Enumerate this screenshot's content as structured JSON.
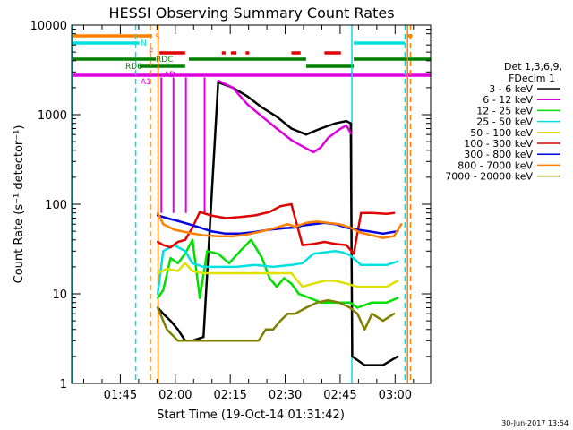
{
  "chart_data": {
    "type": "line",
    "title": "HESSI Observing Summary Count Rates",
    "xlabel": "Start Time (19-Oct-14 01:31:42)",
    "ylabel": "Count Rate (s⁻¹ detector⁻¹)",
    "yscale": "log",
    "ylim": [
      1,
      10000
    ],
    "xlim_minutes": [
      0,
      98
    ],
    "x_ticks": [
      {
        "m": 13.3,
        "label": "01:45"
      },
      {
        "m": 28.3,
        "label": "02:00"
      },
      {
        "m": 43.3,
        "label": "02:15"
      },
      {
        "m": 58.3,
        "label": "02:30"
      },
      {
        "m": 73.3,
        "label": "02:45"
      },
      {
        "m": 88.3,
        "label": "03:00"
      }
    ],
    "y_ticks": [
      {
        "v": 1,
        "label": "1"
      },
      {
        "v": 10,
        "label": "10"
      },
      {
        "v": 100,
        "label": "100"
      },
      {
        "v": 1000,
        "label": "1000"
      },
      {
        "v": 10000,
        "label": "10000"
      }
    ],
    "legend_header": [
      "Det 1,3,6,9,",
      "FDecim 1"
    ],
    "legend_placement": "right",
    "series": [
      {
        "name": "3 - 6 keV",
        "color": "#000000",
        "points": [
          [
            23.5,
            7
          ],
          [
            25,
            6
          ],
          [
            27,
            5
          ],
          [
            29,
            4
          ],
          [
            31,
            3
          ],
          [
            33,
            3
          ],
          [
            36,
            3.3
          ],
          [
            40,
            2300
          ],
          [
            44,
            2000
          ],
          [
            48,
            1600
          ],
          [
            52,
            1200
          ],
          [
            56,
            950
          ],
          [
            60,
            700
          ],
          [
            64,
            600
          ],
          [
            68,
            700
          ],
          [
            72,
            800
          ],
          [
            75,
            850
          ],
          [
            76.2,
            800
          ],
          [
            76.6,
            2
          ],
          [
            80,
            1.6
          ],
          [
            85,
            1.6
          ],
          [
            89,
            2
          ]
        ]
      },
      {
        "name": "6 - 12 keV",
        "color": "#e000e0",
        "points": [
          [
            40,
            2400
          ],
          [
            44,
            2000
          ],
          [
            48,
            1300
          ],
          [
            52,
            950
          ],
          [
            56,
            700
          ],
          [
            60,
            520
          ],
          [
            64,
            420
          ],
          [
            66,
            380
          ],
          [
            68,
            430
          ],
          [
            70,
            550
          ],
          [
            73,
            680
          ],
          [
            75,
            760
          ],
          [
            76.2,
            620
          ]
        ]
      },
      {
        "name": "12 - 25 keV",
        "color": "#00e000",
        "points": [
          [
            23.5,
            9
          ],
          [
            25,
            11
          ],
          [
            27,
            25
          ],
          [
            29,
            22
          ],
          [
            31,
            28
          ],
          [
            33,
            40
          ],
          [
            35,
            9
          ],
          [
            37,
            30
          ],
          [
            40,
            28
          ],
          [
            43,
            22
          ],
          [
            46,
            30
          ],
          [
            49,
            40
          ],
          [
            52,
            25
          ],
          [
            54,
            15
          ],
          [
            56,
            12
          ],
          [
            58,
            15
          ],
          [
            60,
            13
          ],
          [
            62,
            10
          ],
          [
            65,
            9
          ],
          [
            68,
            8
          ],
          [
            71,
            8
          ],
          [
            74,
            8
          ],
          [
            76,
            8
          ],
          [
            78,
            7
          ],
          [
            82,
            8
          ],
          [
            86,
            8
          ],
          [
            89,
            9
          ]
        ]
      },
      {
        "name": "25 - 50 keV",
        "color": "#00e0e0",
        "points": [
          [
            23.5,
            10
          ],
          [
            25,
            30
          ],
          [
            28,
            35
          ],
          [
            31,
            30
          ],
          [
            33,
            22
          ],
          [
            36,
            20
          ],
          [
            40,
            20
          ],
          [
            45,
            20
          ],
          [
            50,
            21
          ],
          [
            55,
            20
          ],
          [
            60,
            21
          ],
          [
            63,
            22
          ],
          [
            66,
            28
          ],
          [
            69,
            29
          ],
          [
            72,
            30
          ],
          [
            74,
            29
          ],
          [
            76,
            27
          ],
          [
            79,
            21
          ],
          [
            82,
            21
          ],
          [
            86,
            21
          ],
          [
            89,
            23
          ]
        ]
      },
      {
        "name": "50 - 100 keV",
        "color": "#e0e000",
        "points": [
          [
            23.5,
            17
          ],
          [
            26,
            19
          ],
          [
            29,
            18
          ],
          [
            31,
            22
          ],
          [
            33,
            18
          ],
          [
            36,
            17
          ],
          [
            40,
            17
          ],
          [
            45,
            17
          ],
          [
            50,
            17
          ],
          [
            55,
            17
          ],
          [
            60,
            17
          ],
          [
            63,
            12
          ],
          [
            66,
            13
          ],
          [
            69,
            14
          ],
          [
            72,
            14
          ],
          [
            75,
            13
          ],
          [
            78,
            12
          ],
          [
            82,
            12
          ],
          [
            86,
            12
          ],
          [
            89,
            14
          ]
        ]
      },
      {
        "name": "100 - 300 keV",
        "color": "#e00000",
        "points": [
          [
            23.5,
            38
          ],
          [
            25,
            35
          ],
          [
            27,
            33
          ],
          [
            29,
            38
          ],
          [
            31,
            40
          ],
          [
            33,
            55
          ],
          [
            35,
            82
          ],
          [
            38,
            75
          ],
          [
            42,
            70
          ],
          [
            46,
            72
          ],
          [
            50,
            75
          ],
          [
            54,
            82
          ],
          [
            57,
            95
          ],
          [
            60,
            100
          ],
          [
            63,
            35
          ],
          [
            66,
            36
          ],
          [
            69,
            38
          ],
          [
            72,
            36
          ],
          [
            75,
            35
          ],
          [
            77,
            28
          ],
          [
            79,
            80
          ],
          [
            82,
            80
          ],
          [
            86,
            78
          ],
          [
            88,
            80
          ]
        ]
      },
      {
        "name": "300 - 800 keV",
        "color": "#0000e0",
        "points": [
          [
            23.5,
            75
          ],
          [
            26,
            70
          ],
          [
            29,
            65
          ],
          [
            32,
            60
          ],
          [
            35,
            55
          ],
          [
            38,
            50
          ],
          [
            42,
            47
          ],
          [
            46,
            47
          ],
          [
            50,
            49
          ],
          [
            54,
            52
          ],
          [
            58,
            54
          ],
          [
            61,
            55
          ],
          [
            63,
            58
          ],
          [
            66,
            60
          ],
          [
            69,
            62
          ],
          [
            72,
            60
          ],
          [
            75,
            55
          ],
          [
            78,
            52
          ],
          [
            81,
            50
          ],
          [
            85,
            47
          ],
          [
            89,
            50
          ]
        ]
      },
      {
        "name": "800 - 7000 keV",
        "color": "#ff8000",
        "points": [
          [
            23.5,
            80
          ],
          [
            25,
            60
          ],
          [
            28,
            52
          ],
          [
            32,
            48
          ],
          [
            36,
            45
          ],
          [
            40,
            44
          ],
          [
            44,
            44
          ],
          [
            48,
            46
          ],
          [
            52,
            50
          ],
          [
            56,
            55
          ],
          [
            59,
            60
          ],
          [
            61,
            56
          ],
          [
            64,
            62
          ],
          [
            67,
            64
          ],
          [
            70,
            62
          ],
          [
            73,
            60
          ],
          [
            76,
            55
          ],
          [
            79,
            48
          ],
          [
            82,
            45
          ],
          [
            85,
            42
          ],
          [
            88,
            44
          ],
          [
            90,
            60
          ]
        ]
      },
      {
        "name": "7000 - 20000 keV",
        "color": "#808000",
        "points": [
          [
            23.5,
            7
          ],
          [
            26,
            4
          ],
          [
            29,
            3
          ],
          [
            32,
            3
          ],
          [
            36,
            3
          ],
          [
            40,
            3
          ],
          [
            44,
            3
          ],
          [
            48,
            3
          ],
          [
            51,
            3
          ],
          [
            53,
            4
          ],
          [
            55,
            4
          ],
          [
            57,
            5
          ],
          [
            59,
            6
          ],
          [
            61,
            6
          ],
          [
            64,
            7
          ],
          [
            67,
            8
          ],
          [
            70,
            8.5
          ],
          [
            73,
            8
          ],
          [
            76,
            7
          ],
          [
            78,
            6
          ],
          [
            80,
            4
          ],
          [
            82,
            6
          ],
          [
            85,
            5
          ],
          [
            88,
            6
          ]
        ]
      }
    ],
    "flag_bars": [
      {
        "label": "S",
        "color": "#ff8000",
        "segments": [
          [
            0,
            22
          ],
          [
            91.5,
            93
          ]
        ]
      },
      {
        "label": "N",
        "color": "#00e0e0",
        "segments": [
          [
            0,
            18.5
          ],
          [
            77,
            91
          ]
        ]
      },
      {
        "label": "F",
        "color": "#e00000",
        "segments": [
          [
            24,
            31
          ],
          [
            41,
            42
          ],
          [
            43.5,
            45
          ],
          [
            47.5,
            48.5
          ],
          [
            60,
            62.5
          ],
          [
            69,
            73.5
          ]
        ]
      },
      {
        "label": "RDC",
        "color": "#008000",
        "segments": [
          [
            0,
            23
          ],
          [
            32,
            64
          ],
          [
            77,
            98
          ]
        ]
      },
      {
        "label": "RD6",
        "color": "#008000",
        "segments": [
          [
            18.5,
            31
          ],
          [
            64,
            77
          ]
        ]
      },
      {
        "label": "AD",
        "color": "#e000e0",
        "segments": []
      },
      {
        "label": "A1",
        "color": "#e000e0",
        "segments": [
          [
            0,
            98
          ]
        ]
      }
    ],
    "vertical_markers": [
      {
        "m": 0.3,
        "color": "#00e0e0",
        "style": "solid"
      },
      {
        "m": 17.5,
        "color": "#00e0e0",
        "style": "dashed"
      },
      {
        "m": 21.5,
        "color": "#ff8000",
        "style": "dashed"
      },
      {
        "m": 23.6,
        "color": "#ff8000",
        "style": "solid"
      },
      {
        "m": 76.5,
        "color": "#00e0e0",
        "style": "solid"
      },
      {
        "m": 91,
        "color": "#00e0e0",
        "style": "dashed"
      },
      {
        "m": 92.5,
        "color": "#ff8000",
        "style": "dashed"
      },
      {
        "m": 91.7,
        "color": "#ff8000",
        "style": "solid"
      }
    ],
    "attenuator_spikes": [
      24.5,
      27.8,
      31.2,
      36.3
    ]
  },
  "footer": {
    "date": "30-Jun-2017 13:54"
  }
}
